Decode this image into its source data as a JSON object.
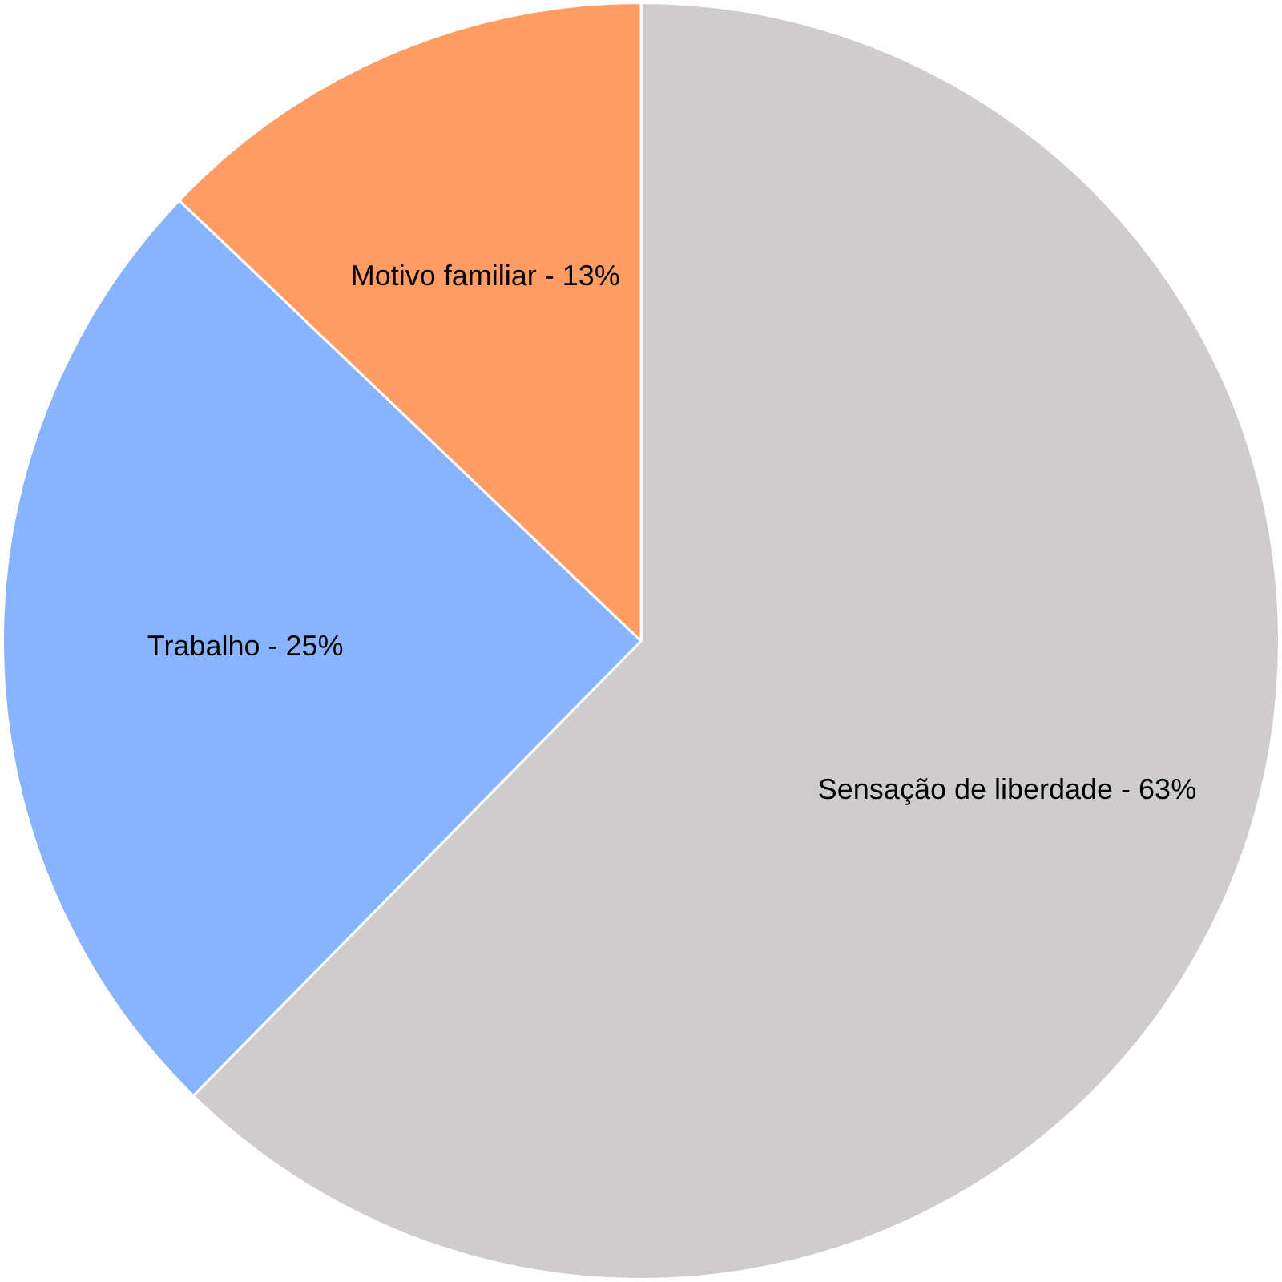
{
  "chart_data": {
    "type": "pie",
    "categories": [
      "Sensação de liberdade",
      "Trabalho",
      "Motivo familiar"
    ],
    "values": [
      63,
      25,
      13
    ],
    "value_labels": [
      "63%",
      "25%",
      "13%"
    ],
    "colors": [
      "#cecccd",
      "#88b4ff",
      "#ff9c63"
    ],
    "legend": false
  }
}
